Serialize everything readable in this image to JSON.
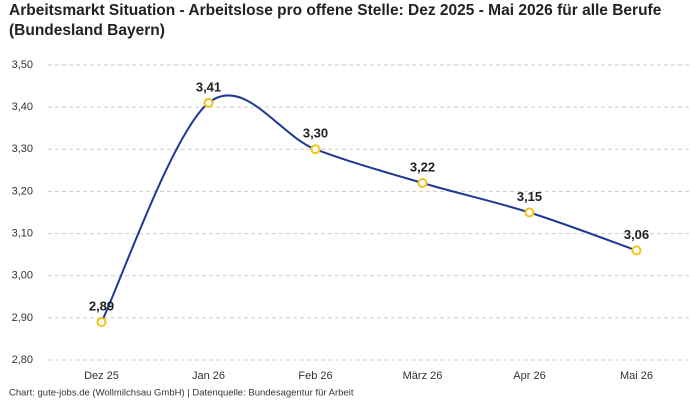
{
  "chart_data": {
    "type": "line",
    "title": "Arbeitsmarkt Situation - Arbeitslose pro offene Stelle: Dez 2025 - Mai 2026 für alle Berufe (Bundesland Bayern)",
    "categories": [
      "Dez 25",
      "Jan 26",
      "Feb 26",
      "März 26",
      "Apr 26",
      "Mai 26"
    ],
    "values": [
      2.89,
      3.41,
      3.3,
      3.22,
      3.15,
      3.06
    ],
    "value_labels": [
      "2,89",
      "3,41",
      "3,30",
      "3,22",
      "3,15",
      "3,06"
    ],
    "color": "#1f3a93",
    "marker_color": "#f0c419",
    "ylim": [
      2.8,
      3.5
    ],
    "yticks": [
      {
        "value": 2.8,
        "label": "2,80"
      },
      {
        "value": 2.9,
        "label": "2,90"
      },
      {
        "value": 3.0,
        "label": "3,00"
      },
      {
        "value": 3.1,
        "label": "3,10"
      },
      {
        "value": 3.2,
        "label": "3,20"
      },
      {
        "value": 3.3,
        "label": "3,30"
      },
      {
        "value": 3.4,
        "label": "3,40"
      },
      {
        "value": 3.5,
        "label": "3,50"
      }
    ],
    "grid": true,
    "source": "Chart: gute-jobs.de (Wollmilchsau GmbH) | Datenquelle: Bundesagentur für Arbeit"
  }
}
